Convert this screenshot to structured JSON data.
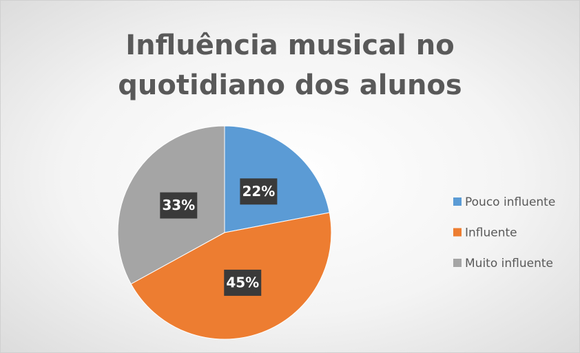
{
  "chart_data": {
    "type": "pie",
    "title": "Influência musical no quotidiano dos alunos",
    "categories": [
      "Pouco influente",
      "Influente",
      "Muito influente"
    ],
    "values": [
      22,
      45,
      33
    ],
    "value_labels": [
      "22%",
      "45%",
      "33%"
    ],
    "colors": [
      "#5b9bd5",
      "#ed7d31",
      "#a5a5a5"
    ],
    "legend": "right"
  }
}
